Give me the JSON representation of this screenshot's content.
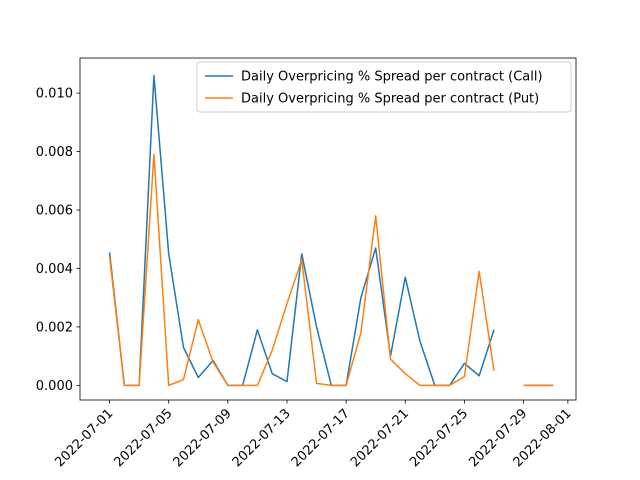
{
  "chart_data": {
    "type": "line",
    "title": "",
    "xlabel": "",
    "ylabel": "",
    "x_axis": {
      "type": "date",
      "range": [
        "2022-06-29",
        "2022-08-01"
      ],
      "ticks": [
        "2022-07-01",
        "2022-07-05",
        "2022-07-09",
        "2022-07-13",
        "2022-07-17",
        "2022-07-21",
        "2022-07-25",
        "2022-07-29",
        "2022-08-01"
      ]
    },
    "y_axis": {
      "range": [
        -0.0005,
        0.0112
      ],
      "ticks": [
        "0.000",
        "0.002",
        "0.004",
        "0.006",
        "0.008",
        "0.010"
      ]
    },
    "grid": false,
    "legend_position": "top-right",
    "series": [
      {
        "name": "Daily Overpricing % Spread per contract (Call)",
        "color": "#1f77b4",
        "points": [
          [
            "2022-07-01",
            0.00455
          ],
          [
            "2022-07-02",
            0.0
          ],
          [
            "2022-07-03",
            0.0
          ],
          [
            "2022-07-04",
            0.0106
          ],
          [
            "2022-07-05",
            0.0045
          ],
          [
            "2022-07-06",
            0.0013
          ],
          [
            "2022-07-07",
            0.00027
          ],
          [
            "2022-07-08",
            0.00085
          ],
          [
            "2022-07-09",
            0.0
          ],
          [
            "2022-07-10",
            0.0
          ],
          [
            "2022-07-11",
            0.0019
          ],
          [
            "2022-07-12",
            0.0004
          ],
          [
            "2022-07-13",
            0.00013
          ],
          [
            "2022-07-14",
            0.0045
          ],
          [
            "2022-07-15",
            0.002
          ],
          [
            "2022-07-16",
            0.0
          ],
          [
            "2022-07-17",
            0.0
          ],
          [
            "2022-07-18",
            0.003
          ],
          [
            "2022-07-19",
            0.0047
          ],
          [
            "2022-07-20",
            0.001
          ],
          [
            "2022-07-21",
            0.0037
          ],
          [
            "2022-07-22",
            0.0015
          ],
          [
            "2022-07-23",
            0.0
          ],
          [
            "2022-07-24",
            0.0
          ],
          [
            "2022-07-25",
            0.00075
          ],
          [
            "2022-07-26",
            0.00033
          ],
          [
            "2022-07-27",
            0.0019
          ],
          [
            "2022-07-29",
            0.0
          ],
          [
            "2022-07-30",
            0.0
          ],
          [
            "2022-07-31",
            0.0
          ]
        ]
      },
      {
        "name": "Daily Overpricing % Spread per contract (Put)",
        "color": "#ff7f0e",
        "points": [
          [
            "2022-07-01",
            0.0044
          ],
          [
            "2022-07-02",
            0.0
          ],
          [
            "2022-07-03",
            0.0
          ],
          [
            "2022-07-04",
            0.0079
          ],
          [
            "2022-07-05",
            0.0
          ],
          [
            "2022-07-06",
            0.0002
          ],
          [
            "2022-07-07",
            0.00225
          ],
          [
            "2022-07-08",
            0.0008
          ],
          [
            "2022-07-09",
            0.0
          ],
          [
            "2022-07-10",
            0.0
          ],
          [
            "2022-07-11",
            0.0
          ],
          [
            "2022-07-12",
            0.0012
          ],
          [
            "2022-07-13",
            0.0028
          ],
          [
            "2022-07-14",
            0.0043
          ],
          [
            "2022-07-15",
            7e-05
          ],
          [
            "2022-07-16",
            0.0
          ],
          [
            "2022-07-17",
            0.0
          ],
          [
            "2022-07-18",
            0.0018
          ],
          [
            "2022-07-19",
            0.0058
          ],
          [
            "2022-07-20",
            0.0009
          ],
          [
            "2022-07-21",
            0.0004
          ],
          [
            "2022-07-22",
            0.0
          ],
          [
            "2022-07-23",
            0.0
          ],
          [
            "2022-07-24",
            0.0
          ],
          [
            "2022-07-25",
            0.0003
          ],
          [
            "2022-07-26",
            0.0039
          ],
          [
            "2022-07-27",
            0.0005
          ],
          [
            "2022-07-29",
            0.0
          ],
          [
            "2022-07-30",
            0.0
          ],
          [
            "2022-07-31",
            0.0
          ]
        ]
      }
    ]
  }
}
